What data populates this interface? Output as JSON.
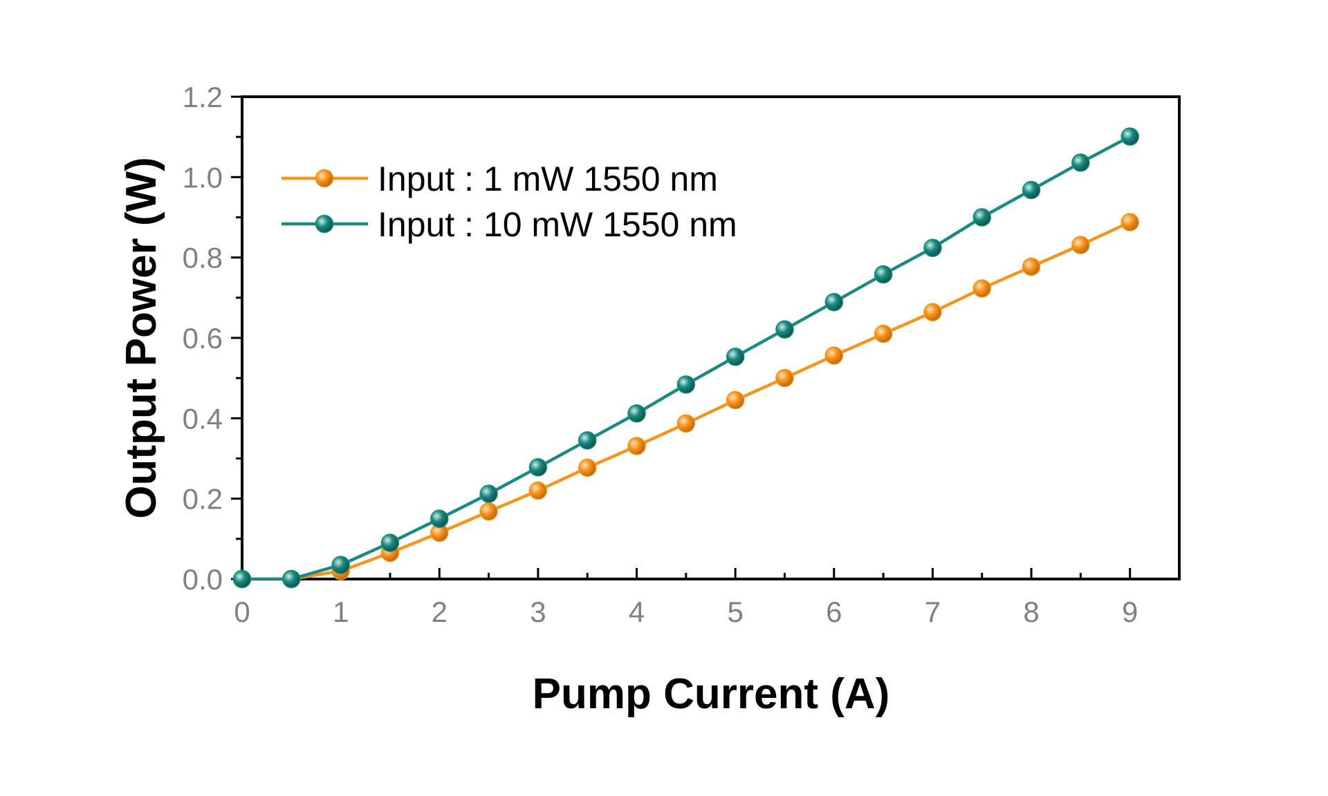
{
  "chart_data": {
    "type": "line",
    "xlabel": "Pump Current (A)",
    "ylabel": "Output Power (W)",
    "xlim": [
      0,
      9.5
    ],
    "ylim": [
      0,
      1.2
    ],
    "x_ticks": [
      "0",
      "1",
      "2",
      "3",
      "4",
      "5",
      "6",
      "7",
      "8",
      "9"
    ],
    "y_ticks": [
      "0.0",
      "0.2",
      "0.4",
      "0.6",
      "0.8",
      "1.0",
      "1.2"
    ],
    "grid": false,
    "legend_position": "top-left",
    "x": [
      0,
      0.5,
      1,
      1.5,
      2,
      2.5,
      3,
      3.5,
      4,
      4.5,
      5,
      5.5,
      6,
      6.5,
      7,
      7.5,
      8,
      8.5,
      9
    ],
    "series": [
      {
        "name": "Input : 1 mW 1550 nm",
        "color": "#f7941d",
        "values": [
          0.0,
          0.0,
          0.02,
          0.065,
          0.115,
          0.168,
          0.22,
          0.277,
          0.331,
          0.387,
          0.445,
          0.5,
          0.556,
          0.61,
          0.664,
          0.723,
          0.777,
          0.831,
          0.888
        ]
      },
      {
        "name": "Input : 10 mW 1550 nm",
        "color": "#1a8a80",
        "values": [
          0.0,
          0.0,
          0.035,
          0.09,
          0.15,
          0.212,
          0.278,
          0.345,
          0.412,
          0.484,
          0.553,
          0.621,
          0.689,
          0.758,
          0.824,
          0.9,
          0.968,
          1.036,
          1.101
        ]
      }
    ],
    "colors": {
      "axis": "#000000",
      "tick_label": "#808080"
    }
  }
}
